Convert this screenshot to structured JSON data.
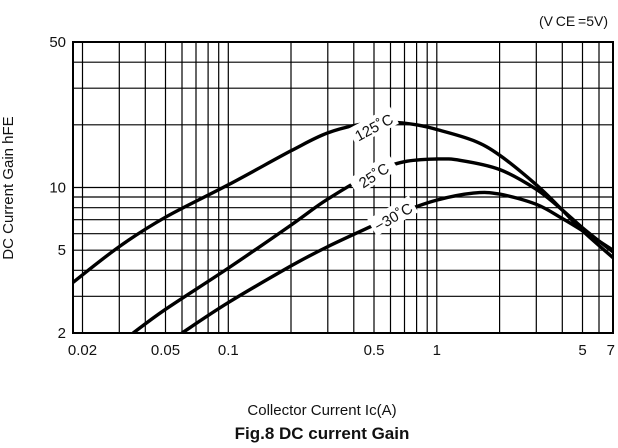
{
  "chart_data": {
    "type": "line",
    "condition": "(V CE =5V)",
    "xlabel": "Collector Current Ic(A)",
    "ylabel": "DC Current Gain hFE",
    "caption": "Fig.8  DC current Gain",
    "x_scale": "log",
    "y_scale": "log",
    "xlim": [
      0.018,
      7
    ],
    "ylim": [
      2,
      50
    ],
    "x_ticks": [
      {
        "value": 0.02,
        "label": "0.02"
      },
      {
        "value": 0.05,
        "label": "0.05"
      },
      {
        "value": 0.1,
        "label": "0.1"
      },
      {
        "value": 0.5,
        "label": "0.5"
      },
      {
        "value": 1,
        "label": "1"
      },
      {
        "value": 5,
        "label": "5"
      },
      {
        "value": 7,
        "label": "7"
      }
    ],
    "y_ticks": [
      {
        "value": 2,
        "label": "2"
      },
      {
        "value": 5,
        "label": "5"
      },
      {
        "value": 10,
        "label": "10"
      },
      {
        "value": 50,
        "label": "50"
      }
    ],
    "grid": true,
    "series": [
      {
        "name": "125˚C",
        "points": [
          [
            0.018,
            3.5
          ],
          [
            0.03,
            5.2
          ],
          [
            0.05,
            7.2
          ],
          [
            0.1,
            10.3
          ],
          [
            0.2,
            15.0
          ],
          [
            0.3,
            18.3
          ],
          [
            0.45,
            20.3
          ],
          [
            0.6,
            20.6
          ],
          [
            0.8,
            20.0
          ],
          [
            1.0,
            19.0
          ],
          [
            1.5,
            16.8
          ],
          [
            2.0,
            14.3
          ],
          [
            3.0,
            10.3
          ],
          [
            4.0,
            7.8
          ],
          [
            5.0,
            6.2
          ],
          [
            7.0,
            4.6
          ]
        ]
      },
      {
        "name": "25˚C",
        "points": [
          [
            0.035,
            2.0
          ],
          [
            0.05,
            2.6
          ],
          [
            0.1,
            4.1
          ],
          [
            0.2,
            6.6
          ],
          [
            0.3,
            8.8
          ],
          [
            0.5,
            11.8
          ],
          [
            0.7,
            13.3
          ],
          [
            1.0,
            13.7
          ],
          [
            1.3,
            13.5
          ],
          [
            2.0,
            12.2
          ],
          [
            3.0,
            9.8
          ],
          [
            4.0,
            7.8
          ],
          [
            5.0,
            6.4
          ],
          [
            7.0,
            4.9
          ]
        ]
      },
      {
        "name": "−30˚C",
        "points": [
          [
            0.06,
            2.0
          ],
          [
            0.1,
            2.8
          ],
          [
            0.2,
            4.2
          ],
          [
            0.3,
            5.2
          ],
          [
            0.5,
            6.6
          ],
          [
            0.7,
            7.7
          ],
          [
            1.0,
            8.7
          ],
          [
            1.5,
            9.4
          ],
          [
            2.0,
            9.3
          ],
          [
            3.0,
            8.3
          ],
          [
            4.0,
            7.1
          ],
          [
            5.0,
            6.2
          ],
          [
            7.0,
            5.0
          ]
        ]
      }
    ]
  }
}
